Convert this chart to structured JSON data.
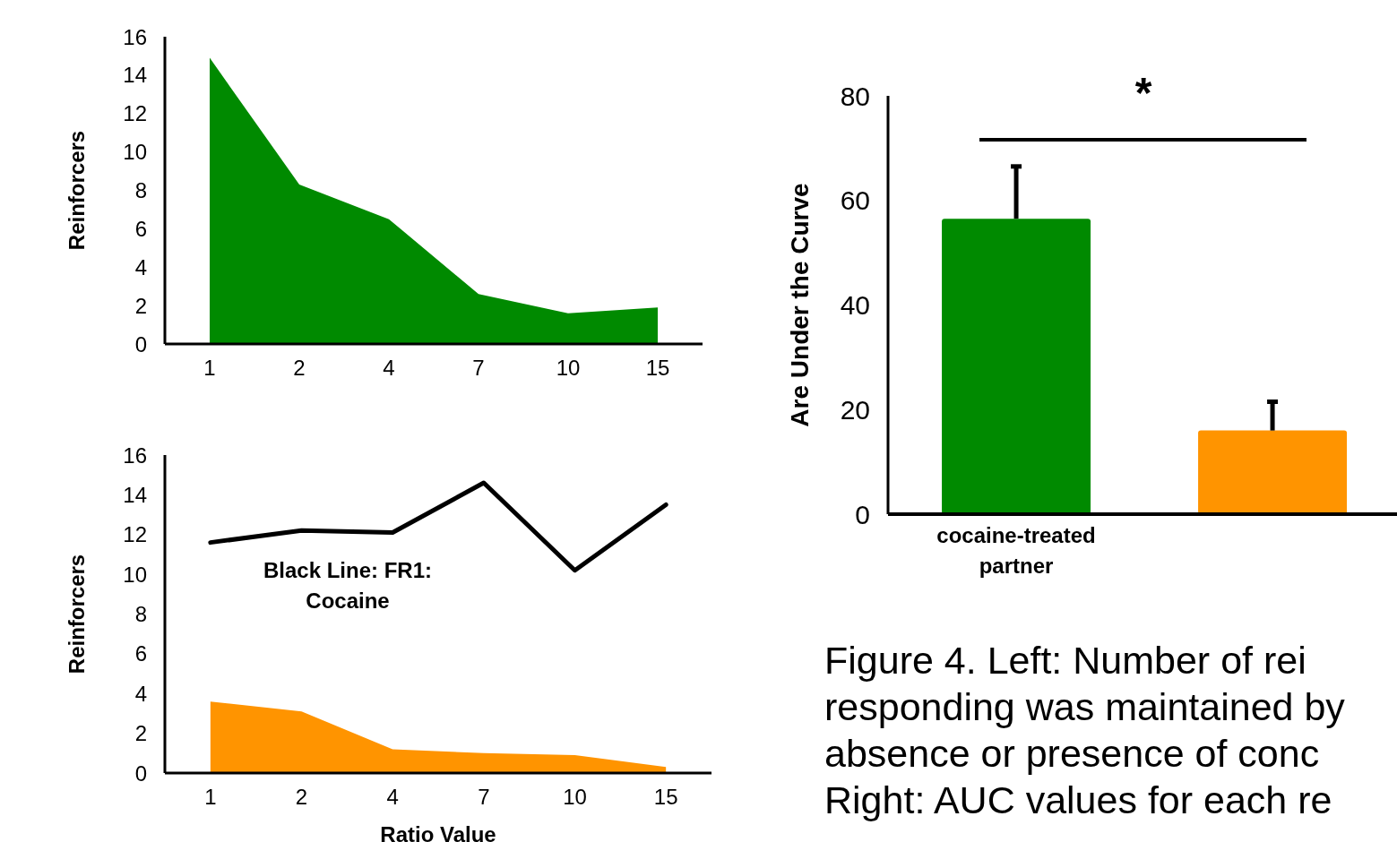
{
  "chart_data": [
    {
      "type": "area",
      "categories": [
        "1",
        "2",
        "4",
        "7",
        "10",
        "15"
      ],
      "values": [
        14.9,
        8.3,
        6.5,
        2.6,
        1.6,
        1.9
      ],
      "color": "#008a00",
      "ylabel": "Reinforcers",
      "ylim": [
        0,
        16
      ],
      "yticks": [
        0,
        2,
        4,
        6,
        8,
        10,
        12,
        14,
        16
      ]
    },
    {
      "type": "area",
      "categories": [
        "1",
        "2",
        "4",
        "7",
        "10",
        "15"
      ],
      "series": [
        {
          "type": "area",
          "color": "#ff9400",
          "values": [
            3.6,
            3.1,
            1.2,
            1.0,
            0.9,
            0.3
          ]
        },
        {
          "type": "line",
          "color": "#000000",
          "values": [
            11.6,
            12.2,
            12.1,
            14.6,
            10.2,
            13.5
          ]
        }
      ],
      "xlabel": "Ratio Value",
      "ylabel": "Reinforcers",
      "ylim": [
        0,
        16
      ],
      "yticks": [
        0,
        2,
        4,
        6,
        8,
        10,
        12,
        14,
        16
      ],
      "annotations": [
        "Black Line: FR1: Cocaine"
      ]
    },
    {
      "type": "bar",
      "categories": [
        "cocaine-treated partner",
        null
      ],
      "values": [
        56.5,
        16
      ],
      "colors": [
        "#008a00",
        "#ff9400"
      ],
      "errors": [
        [
          56.5,
          66.5
        ],
        [
          16,
          21.5
        ]
      ],
      "ylabel": "Are Under the Curve",
      "ylim": [
        0,
        80
      ],
      "yticks": [
        0,
        20,
        40,
        60,
        80
      ],
      "annotations": [
        "*"
      ]
    },
    {
      "type": "other",
      "annotations": [
        "Figure 4. Left: Number of rei",
        "responding was maintained by",
        "absence or presence of conc",
        "Right: AUC values for each re"
      ]
    }
  ]
}
